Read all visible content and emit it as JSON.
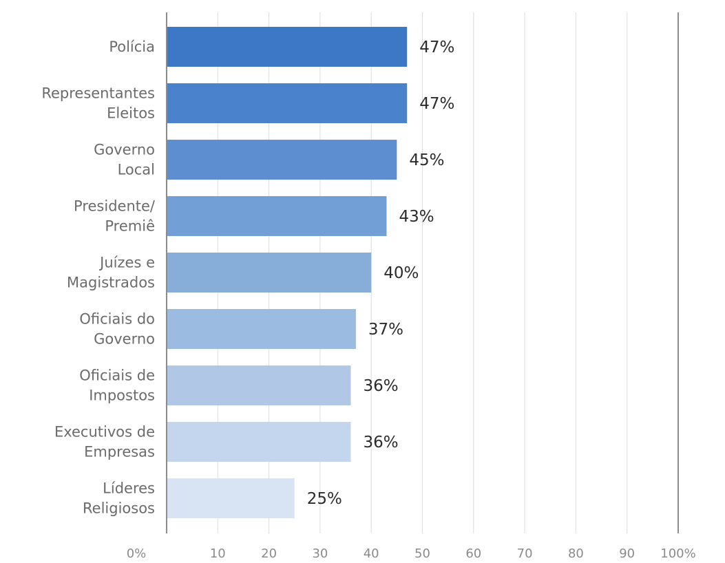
{
  "chart_data": {
    "type": "bar",
    "orientation": "horizontal",
    "categories": [
      [
        "Polícia"
      ],
      [
        "Representantes",
        "Eleitos"
      ],
      [
        "Governo",
        "Local"
      ],
      [
        "Presidente/",
        "Premiê"
      ],
      [
        "Juízes e",
        "Magistrados"
      ],
      [
        "Oficiais do",
        "Governo"
      ],
      [
        "Oficiais de",
        "Impostos"
      ],
      [
        "Executivos de",
        "Empresas"
      ],
      [
        "Líderes",
        "Religiosos"
      ]
    ],
    "values": [
      47,
      47,
      45,
      43,
      40,
      37,
      36,
      36,
      25
    ],
    "value_labels": [
      "47%",
      "47%",
      "45%",
      "43%",
      "40%",
      "37%",
      "36%",
      "36%",
      "25%"
    ],
    "xlim": [
      0,
      100
    ],
    "x_ticks": [
      0,
      10,
      20,
      30,
      40,
      50,
      60,
      70,
      80,
      90,
      100
    ],
    "x_tick_labels": [
      "0%",
      "10",
      "20",
      "30",
      "40",
      "50",
      "60",
      "70",
      "80",
      "90",
      "100%"
    ],
    "bar_colors": [
      "#3d78c7",
      "#4a82cb",
      "#5d8fd0",
      "#729fd6",
      "#87add9",
      "#9cbbe0",
      "#b0c8e6",
      "#c4d6ed",
      "#d8e4f3"
    ],
    "grid": true,
    "title": "",
    "xlabel": "",
    "ylabel": ""
  }
}
